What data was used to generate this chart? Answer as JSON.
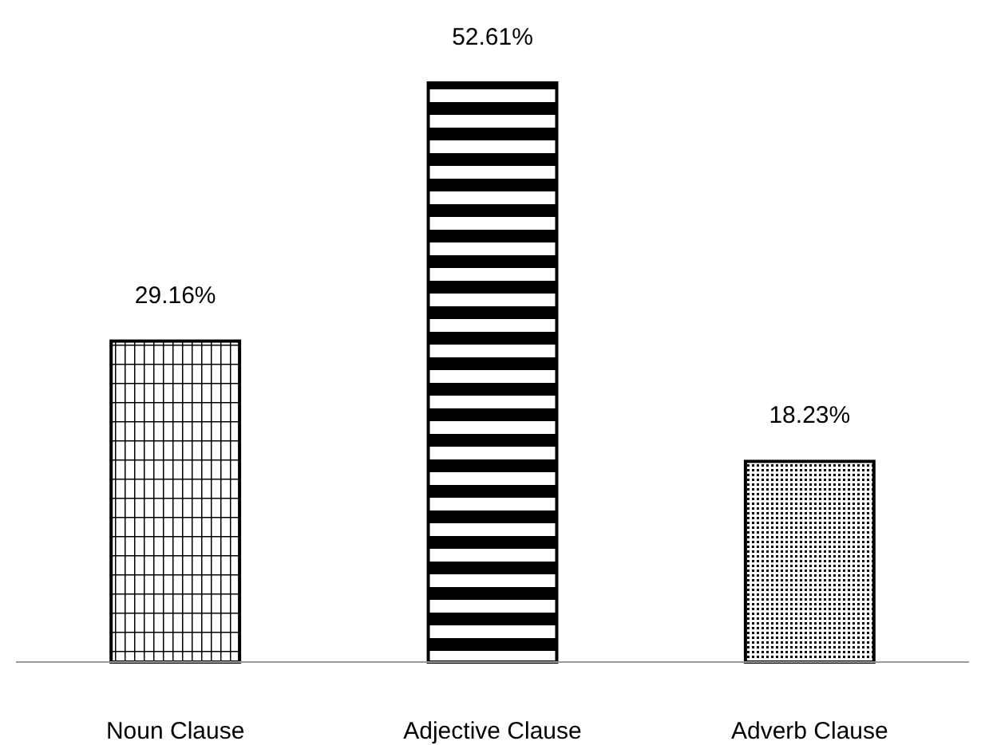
{
  "chart_data": {
    "type": "bar",
    "categories": [
      "Noun Clause",
      "Adjective Clause",
      "Adverb Clause"
    ],
    "values": [
      29.16,
      52.61,
      18.23
    ],
    "value_labels": [
      "29.16%",
      "52.61%",
      "18.23%"
    ],
    "color": "#000000"
  }
}
